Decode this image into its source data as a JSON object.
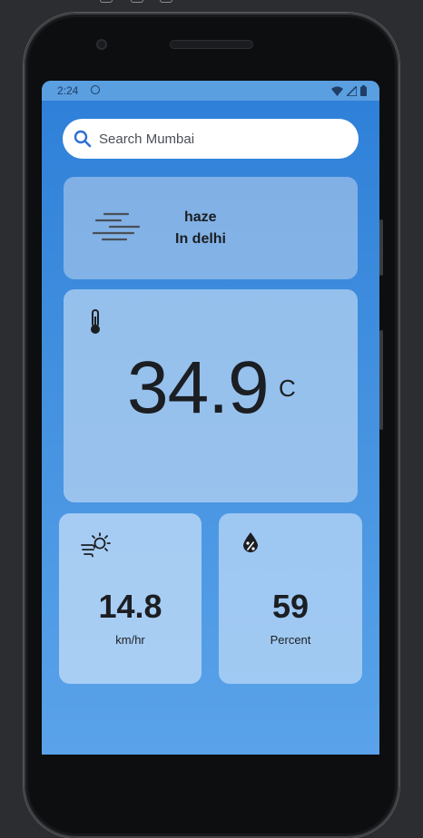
{
  "status_bar": {
    "time": "2:24"
  },
  "search": {
    "placeholder": "Search Mumbai"
  },
  "weather": {
    "description": "haze",
    "location": "In delhi"
  },
  "temperature": {
    "value": "34.9",
    "unit": "C"
  },
  "wind": {
    "value": "14.8",
    "unit": "km/hr"
  },
  "humidity": {
    "value": "59",
    "unit": "Percent"
  },
  "icons": {
    "search": "search-icon",
    "weather": "haze-icon",
    "temperature": "thermometer-icon",
    "wind": "wind-sun-icon",
    "humidity": "humidity-drop-icon"
  },
  "colors": {
    "accent": "#2d7fd8",
    "search_icon": "#2f6fd6"
  }
}
